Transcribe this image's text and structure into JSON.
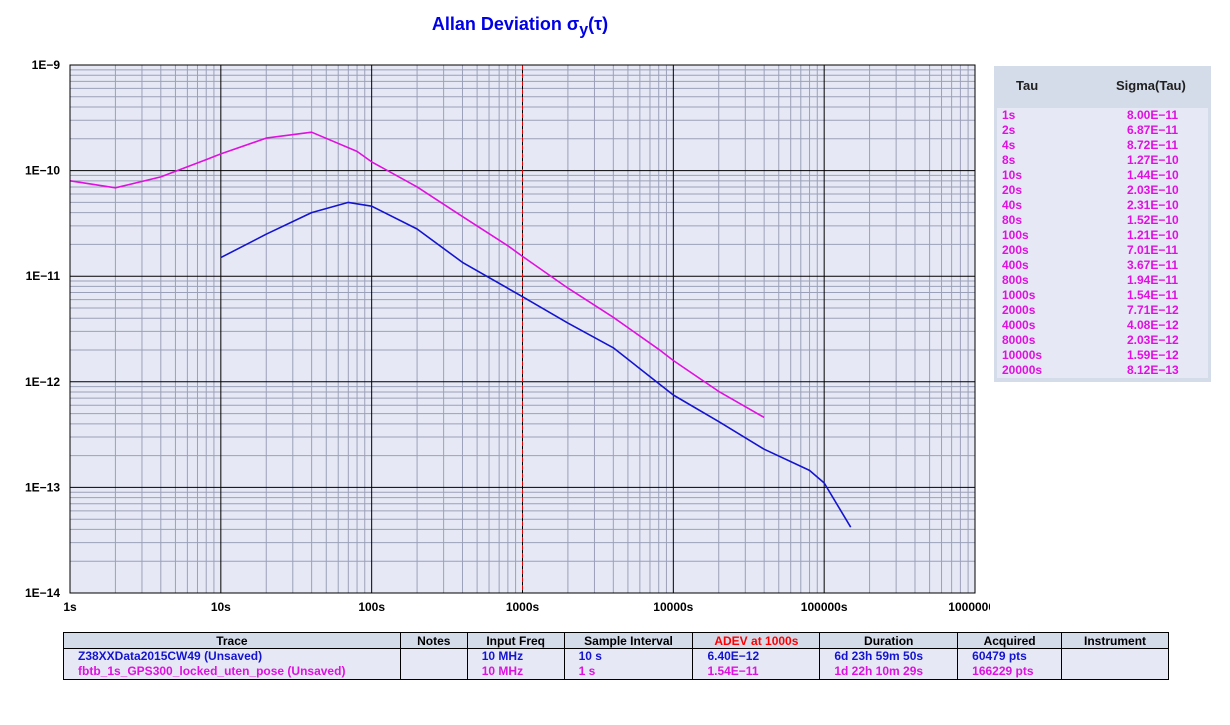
{
  "chart_data": {
    "type": "line",
    "title": "Allan Deviation",
    "title_symbol": "σ",
    "title_sub": "y",
    "title_arg": "(τ)",
    "x_scale": "log",
    "y_scale": "log",
    "xlim": [
      1,
      1000000
    ],
    "ylim": [
      1e-14,
      1e-09
    ],
    "grid": true,
    "x_ticks": [
      1,
      10,
      100,
      1000,
      10000,
      100000,
      1000000
    ],
    "x_tick_labels": [
      "1s",
      "10s",
      "100s",
      "1000s",
      "10000s",
      "100000s",
      "1000000s"
    ],
    "y_ticks": [
      1e-09,
      1e-10,
      1e-11,
      1e-12,
      1e-13,
      1e-14
    ],
    "y_tick_labels": [
      "1E−9",
      "1E−10",
      "1E−11",
      "1E−12",
      "1E−13",
      "1E−14"
    ],
    "marker_line": {
      "x": 1000,
      "color": "#e00000",
      "style": "dashed"
    },
    "series": [
      {
        "color": "#1414d0",
        "points": [
          [
            10,
            1.5e-11
          ],
          [
            20,
            2.5e-11
          ],
          [
            40,
            4e-11
          ],
          [
            70,
            5e-11
          ],
          [
            100,
            4.6e-11
          ],
          [
            200,
            2.8e-11
          ],
          [
            400,
            1.35e-11
          ],
          [
            1000,
            6.4e-12
          ],
          [
            2000,
            3.6e-12
          ],
          [
            4000,
            2.1e-12
          ],
          [
            10000,
            7.5e-13
          ],
          [
            20000,
            4.2e-13
          ],
          [
            40000,
            2.3e-13
          ],
          [
            80000,
            1.45e-13
          ],
          [
            100000,
            1.1e-13
          ],
          [
            150000,
            4.2e-14
          ]
        ]
      },
      {
        "color": "#e010e0",
        "points": [
          [
            1,
            8e-11
          ],
          [
            2,
            6.87e-11
          ],
          [
            4,
            8.72e-11
          ],
          [
            8,
            1.27e-10
          ],
          [
            10,
            1.44e-10
          ],
          [
            20,
            2.03e-10
          ],
          [
            40,
            2.31e-10
          ],
          [
            80,
            1.52e-10
          ],
          [
            100,
            1.21e-10
          ],
          [
            200,
            7.01e-11
          ],
          [
            400,
            3.67e-11
          ],
          [
            800,
            1.94e-11
          ],
          [
            1000,
            1.54e-11
          ],
          [
            2000,
            7.71e-12
          ],
          [
            4000,
            4.08e-12
          ],
          [
            8000,
            2.03e-12
          ],
          [
            10000,
            1.59e-12
          ],
          [
            20000,
            8.12e-13
          ],
          [
            40000,
            4.6e-13
          ]
        ]
      }
    ]
  },
  "tau_table": {
    "headers": {
      "tau": "Tau",
      "sigma": "Sigma(Tau)"
    },
    "rows": [
      {
        "tau": "1s",
        "sigma": "8.00E−11"
      },
      {
        "tau": "2s",
        "sigma": "6.87E−11"
      },
      {
        "tau": "4s",
        "sigma": "8.72E−11"
      },
      {
        "tau": "8s",
        "sigma": "1.27E−10"
      },
      {
        "tau": "10s",
        "sigma": "1.44E−10"
      },
      {
        "tau": "20s",
        "sigma": "2.03E−10"
      },
      {
        "tau": "40s",
        "sigma": "2.31E−10"
      },
      {
        "tau": "80s",
        "sigma": "1.52E−10"
      },
      {
        "tau": "100s",
        "sigma": "1.21E−10"
      },
      {
        "tau": "200s",
        "sigma": "7.01E−11"
      },
      {
        "tau": "400s",
        "sigma": "3.67E−11"
      },
      {
        "tau": "800s",
        "sigma": "1.94E−11"
      },
      {
        "tau": "1000s",
        "sigma": "1.54E−11"
      },
      {
        "tau": "2000s",
        "sigma": "7.71E−12"
      },
      {
        "tau": "4000s",
        "sigma": "4.08E−12"
      },
      {
        "tau": "8000s",
        "sigma": "2.03E−12"
      },
      {
        "tau": "10000s",
        "sigma": "1.59E−12"
      },
      {
        "tau": "20000s",
        "sigma": "8.12E−13"
      }
    ]
  },
  "trace_table": {
    "headers": {
      "trace": "Trace",
      "notes": "Notes",
      "input_freq": "Input Freq",
      "sample_interval": "Sample Interval",
      "adev": "ADEV at 1000s",
      "duration": "Duration",
      "acquired": "Acquired",
      "instrument": "Instrument"
    },
    "rows": [
      {
        "name": "Z38XXData2015CW49 (Unsaved)",
        "notes": "",
        "input_freq": "10 MHz",
        "sample_interval": "10 s",
        "adev": "6.40E−12",
        "duration": "6d 23h 59m 50s",
        "acquired": "60479 pts",
        "instrument": ""
      },
      {
        "name": "fbtb_1s_GPS300_locked_uten_pose  (Unsaved)",
        "notes": "",
        "input_freq": "10 MHz",
        "sample_interval": "1 s",
        "adev": "1.54E−11",
        "duration": "1d 22h 10m 29s",
        "acquired": "166229 pts",
        "instrument": ""
      }
    ]
  },
  "colors": {
    "title": "#0000e6",
    "plot_background": "#e6e9f5",
    "trace_blue": "#1414d0",
    "trace_magenta": "#e010e0",
    "adev_header": "#ff0000"
  }
}
